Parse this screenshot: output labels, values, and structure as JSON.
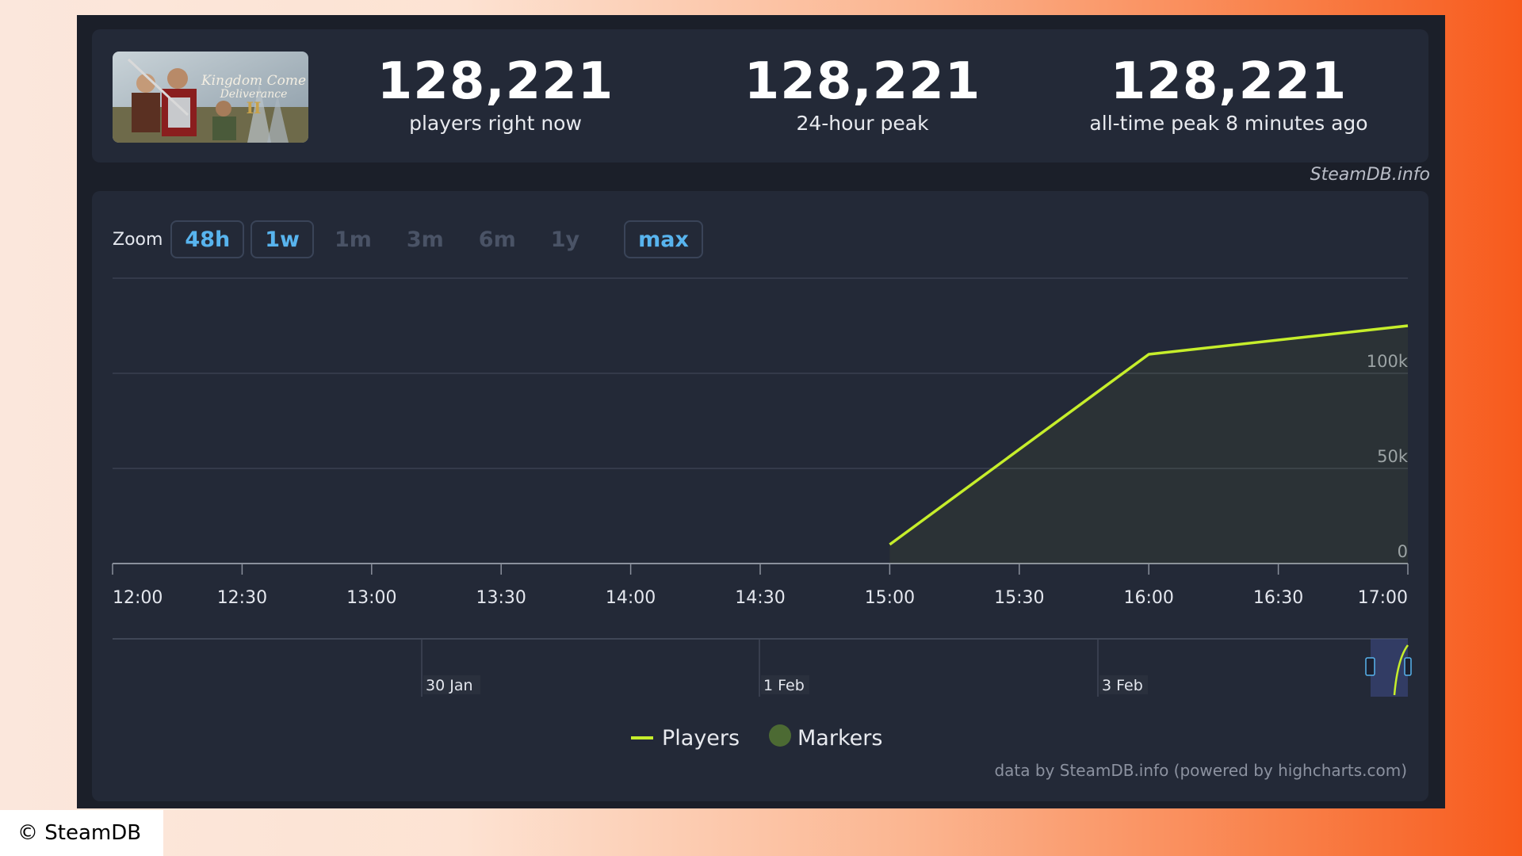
{
  "stats": [
    {
      "value": "128,221",
      "label": "players right now"
    },
    {
      "value": "128,221",
      "label": "24-hour peak"
    },
    {
      "value": "128,221",
      "label": "all-time peak 8 minutes ago"
    }
  ],
  "thumbnail": {
    "title_line1": "Kingdom Come",
    "title_line2": "Deliverance",
    "numeral": "II"
  },
  "brand": "SteamDB.info",
  "zoom": {
    "label": "Zoom",
    "buttons": [
      {
        "label": "48h",
        "active": true
      },
      {
        "label": "1w",
        "active": true
      },
      {
        "label": "1m",
        "active": false
      },
      {
        "label": "3m",
        "active": false
      },
      {
        "label": "6m",
        "active": false
      },
      {
        "label": "1y",
        "active": false
      },
      {
        "label": "max",
        "active": true
      }
    ]
  },
  "chart_data": {
    "type": "line",
    "title": "",
    "xlabel": "",
    "ylabel": "",
    "x_ticks": [
      "12:00",
      "12:30",
      "13:00",
      "13:30",
      "14:00",
      "14:30",
      "15:00",
      "15:30",
      "16:00",
      "16:30",
      "17:00"
    ],
    "y_ticks": [
      "0",
      "50k",
      "100k"
    ],
    "ylim": [
      0,
      150000
    ],
    "xlim": [
      "12:00",
      "17:00"
    ],
    "series": [
      {
        "name": "Players",
        "color": "#c6ee2b",
        "points": [
          {
            "x": "15:00",
            "y": 10000
          },
          {
            "x": "16:00",
            "y": 110000
          },
          {
            "x": "17:00",
            "y": 125000
          }
        ]
      }
    ],
    "navigator_labels": [
      "30 Jan",
      "1 Feb",
      "3 Feb"
    ],
    "legend": [
      {
        "label": "Players",
        "color": "#c6ee2b",
        "symbol": "line"
      },
      {
        "label": "Markers",
        "color": "#4c6a33",
        "symbol": "circle"
      }
    ],
    "legend_position": "bottom-center",
    "grid": true
  },
  "credits": "data by SteamDB.info (powered by highcharts.com)",
  "copyright": "© SteamDB"
}
